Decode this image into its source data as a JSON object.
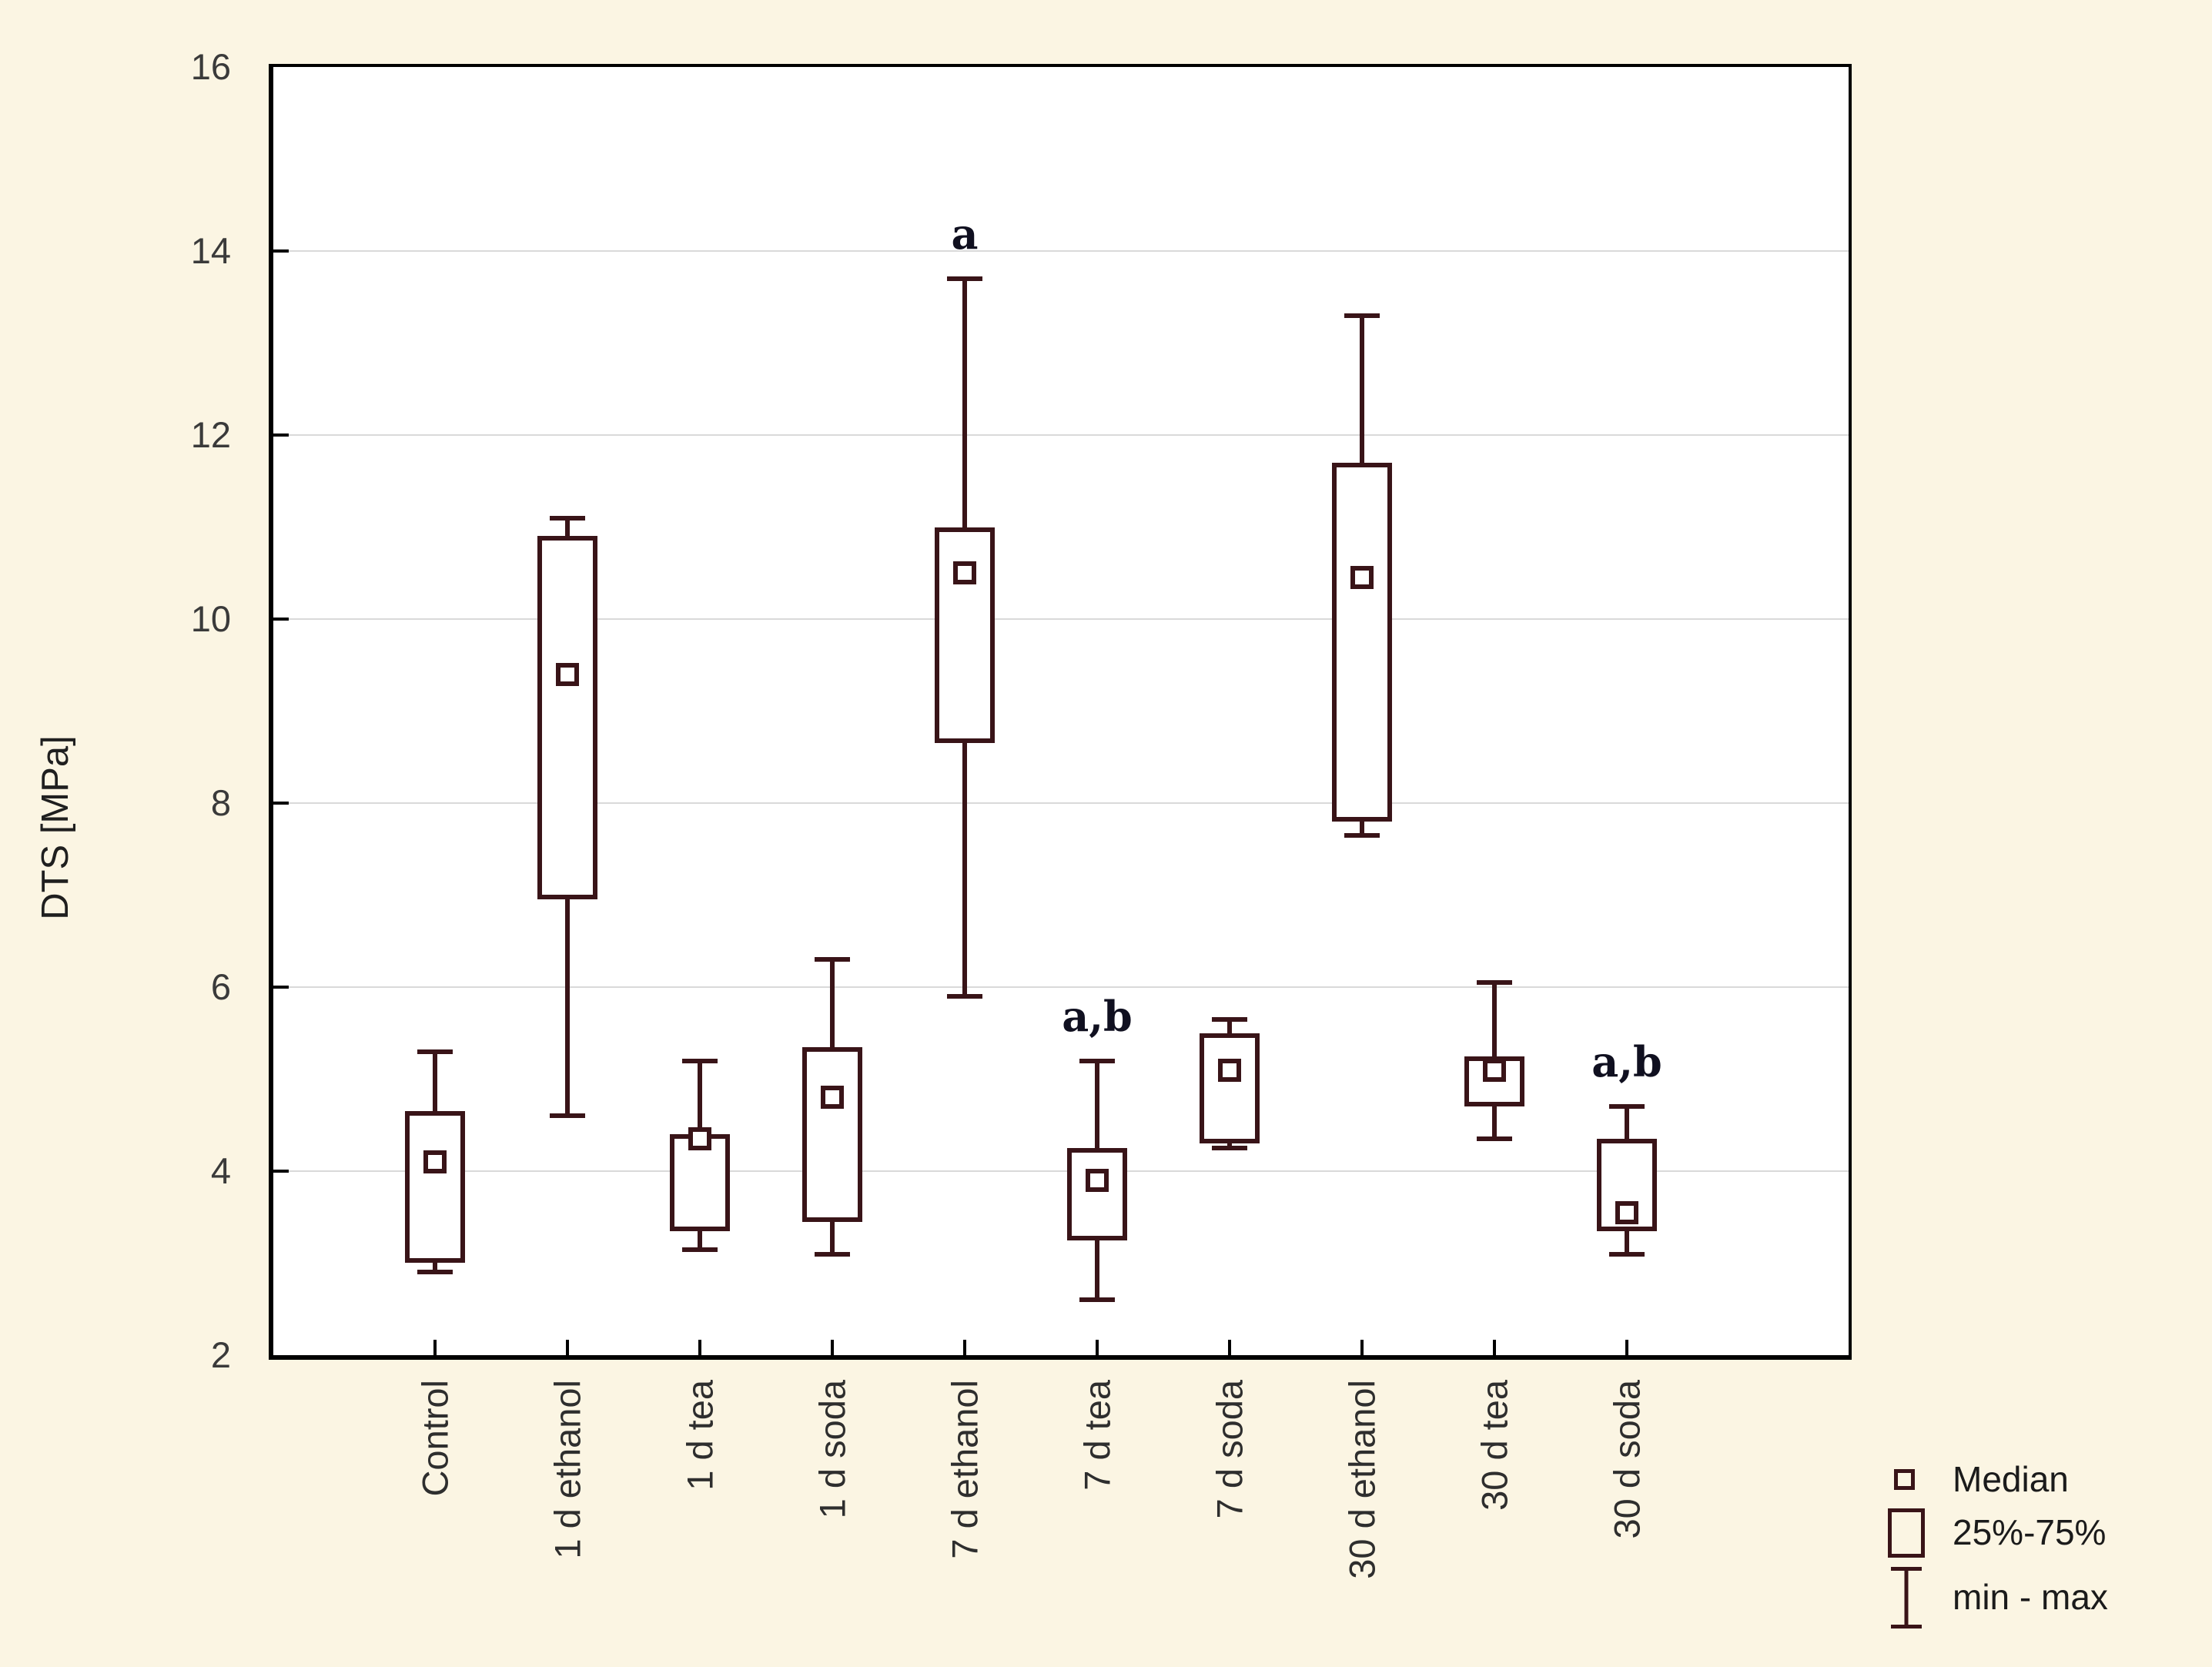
{
  "page": {
    "background_color": "#FBF5E3",
    "plot_background": "#FFFFFF"
  },
  "y_axis": {
    "title": "DTS [MPa]",
    "tick_labels": [
      "2",
      "4",
      "6",
      "8",
      "10",
      "12",
      "14",
      "16"
    ]
  },
  "x_axis": {
    "categories": [
      "Control",
      "1 d ethanol",
      "1 d tea",
      "1 d soda",
      "7 d ethanol",
      "7 d tea",
      "7 d soda",
      "30 d ethanol",
      "30 d tea",
      "30 d soda"
    ]
  },
  "legend": {
    "items": [
      {
        "icon": "median-square-icon",
        "label": "Median"
      },
      {
        "icon": "iqr-box-icon",
        "label": "25%-75%"
      },
      {
        "icon": "min-max-whisker-icon",
        "label": "min - max"
      }
    ]
  },
  "colors": {
    "box_outline": "#391418",
    "grid_line": "#D9D9D9",
    "axis_line": "#000000",
    "tick_text": "#3A3A3A",
    "category_text": "#2E2E2E",
    "annotation_text": "#101020",
    "background": "#FBF5E3"
  },
  "chart_data": {
    "type": "box",
    "title": "",
    "xlabel": "",
    "ylabel": "DTS [MPa]",
    "ylim": [
      2,
      16
    ],
    "ytick_step": 2,
    "grid": "horizontal gridlines every 2 MPa",
    "legend_position": "bottom-right outside plot",
    "box_definition": "25%-75%",
    "whisker_definition": "min - max",
    "center_definition": "Median",
    "categories": [
      "Control",
      "1 d ethanol",
      "1 d tea",
      "1 d soda",
      "7 d ethanol",
      "7 d tea",
      "7 d soda",
      "30 d ethanol",
      "30 d tea",
      "30 d soda"
    ],
    "series": [
      {
        "name": "Control",
        "min": 2.9,
        "q1": 3.0,
        "median": 4.1,
        "q3": 4.65,
        "max": 5.3,
        "annotation": ""
      },
      {
        "name": "1 d ethanol",
        "min": 4.6,
        "q1": 6.95,
        "median": 9.4,
        "q3": 10.9,
        "max": 11.1,
        "annotation": ""
      },
      {
        "name": "1 d tea",
        "min": 3.15,
        "q1": 3.35,
        "median": 4.35,
        "q3": 4.4,
        "max": 5.2,
        "annotation": ""
      },
      {
        "name": "1 d soda",
        "min": 3.1,
        "q1": 3.45,
        "median": 4.8,
        "q3": 5.35,
        "max": 6.3,
        "annotation": ""
      },
      {
        "name": "7 d ethanol",
        "min": 5.9,
        "q1": 8.65,
        "median": 10.5,
        "q3": 11.0,
        "max": 13.7,
        "annotation": "a"
      },
      {
        "name": "7 d tea",
        "min": 2.6,
        "q1": 3.25,
        "median": 3.9,
        "q3": 4.25,
        "max": 5.2,
        "annotation": "a,b"
      },
      {
        "name": "7 d soda",
        "min": 4.25,
        "q1": 4.3,
        "median": 5.1,
        "q3": 5.5,
        "max": 5.65,
        "annotation": ""
      },
      {
        "name": "30 d ethanol",
        "min": 7.65,
        "q1": 7.8,
        "median": 10.45,
        "q3": 11.7,
        "max": 13.3,
        "annotation": ""
      },
      {
        "name": "30 d tea",
        "min": 4.35,
        "q1": 4.7,
        "median": 5.1,
        "q3": 5.25,
        "max": 6.05,
        "annotation": ""
      },
      {
        "name": "30 d soda",
        "min": 3.1,
        "q1": 3.35,
        "median": 3.55,
        "q3": 4.35,
        "max": 4.7,
        "annotation": "a,b"
      }
    ]
  }
}
